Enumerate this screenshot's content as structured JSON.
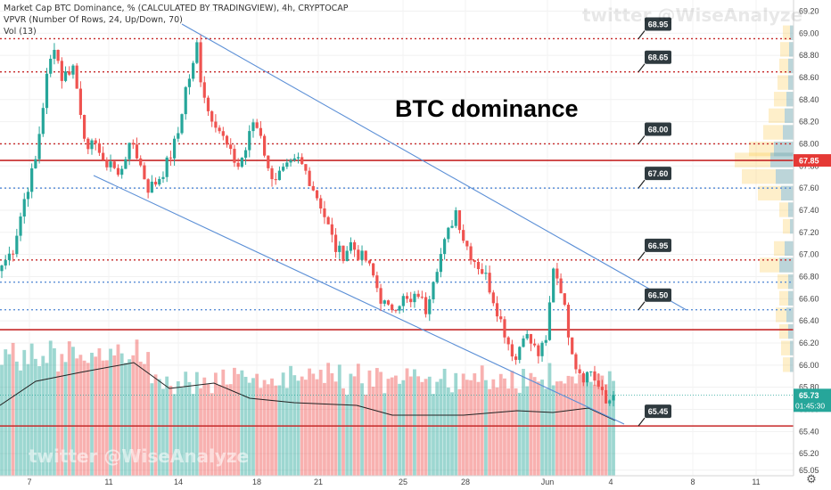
{
  "header": {
    "title": "Market Cap BTC Dominance, % (CALCULATED BY TRADINGVIEW), 4h, CRYPTOCAP",
    "vpvr": "VPVR (Number Of Rows, 24, Up/Down, 70)",
    "vol": "Vol (13)"
  },
  "watermark": "twitter @WiseAnalyze",
  "annotation": "BTC dominance",
  "gear_icon": "gear-icon",
  "colors": {
    "up": "#26a69a",
    "down": "#ef5350",
    "level": "#c62828",
    "trend": "#5b8fd6",
    "price_tag": "#e53935",
    "time_tag": "#26a69a",
    "label_bg": "#2f3a3f"
  },
  "chart_data": {
    "type": "candlestick",
    "y_axis": {
      "min": 65.0,
      "max": 69.3,
      "ticks": [
        "65.05",
        "65.20",
        "65.40",
        "65.60",
        "65.80",
        "66.00",
        "66.20",
        "66.40",
        "66.60",
        "66.80",
        "67.00",
        "67.20",
        "67.40",
        "67.60",
        "67.80",
        "68.00",
        "68.20",
        "68.40",
        "68.60",
        "68.80",
        "69.00",
        "69.20"
      ]
    },
    "x_axis": {
      "ticks": [
        "7",
        "11",
        "14",
        "18",
        "21",
        "25",
        "28",
        "Jun",
        "4",
        "8",
        "11"
      ]
    },
    "price_labels": [
      "68.95",
      "68.65",
      "68.00",
      "67.60",
      "66.95",
      "66.50",
      "65.45"
    ],
    "current_price": "67.85",
    "last_price": "65.73",
    "countdown": "01:45:30",
    "close_path": [
      [
        0,
        66.9
      ],
      [
        3,
        67.05
      ],
      [
        6,
        67.5
      ],
      [
        9,
        67.85
      ],
      [
        12,
        68.6
      ],
      [
        14,
        68.9
      ],
      [
        16,
        68.6
      ],
      [
        19,
        68.7
      ],
      [
        21,
        68.3
      ],
      [
        23,
        67.9
      ],
      [
        25,
        68.05
      ],
      [
        27,
        67.8
      ],
      [
        29,
        67.85
      ],
      [
        31,
        67.7
      ],
      [
        33,
        67.9
      ],
      [
        35,
        68.0
      ],
      [
        37,
        67.8
      ],
      [
        39,
        67.6
      ],
      [
        41,
        67.65
      ],
      [
        43,
        67.75
      ],
      [
        45,
        67.9
      ],
      [
        47,
        68.1
      ],
      [
        49,
        68.5
      ],
      [
        51,
        68.7
      ],
      [
        52,
        68.9
      ],
      [
        53,
        68.6
      ],
      [
        55,
        68.3
      ],
      [
        57,
        68.2
      ],
      [
        59,
        68.05
      ],
      [
        61,
        67.9
      ],
      [
        63,
        67.8
      ],
      [
        65,
        67.95
      ],
      [
        67,
        68.2
      ],
      [
        69,
        68.1
      ],
      [
        71,
        67.75
      ],
      [
        73,
        67.7
      ],
      [
        75,
        67.75
      ],
      [
        77,
        67.8
      ],
      [
        79,
        67.85
      ],
      [
        81,
        67.75
      ],
      [
        83,
        67.6
      ],
      [
        85,
        67.45
      ],
      [
        87,
        67.25
      ],
      [
        89,
        67.05
      ],
      [
        91,
        67.0
      ],
      [
        93,
        67.1
      ],
      [
        95,
        67.0
      ],
      [
        97,
        66.95
      ],
      [
        99,
        66.8
      ],
      [
        101,
        66.6
      ],
      [
        103,
        66.5
      ],
      [
        105,
        66.55
      ],
      [
        107,
        66.6
      ],
      [
        109,
        66.55
      ],
      [
        111,
        66.65
      ],
      [
        113,
        66.5
      ],
      [
        115,
        66.8
      ],
      [
        117,
        67.0
      ],
      [
        119,
        67.2
      ],
      [
        121,
        67.4
      ],
      [
        123,
        67.15
      ],
      [
        125,
        67.0
      ],
      [
        127,
        66.9
      ],
      [
        129,
        66.8
      ],
      [
        131,
        66.6
      ],
      [
        133,
        66.4
      ],
      [
        135,
        66.2
      ],
      [
        137,
        66.05
      ],
      [
        139,
        66.3
      ],
      [
        141,
        66.2
      ],
      [
        143,
        66.1
      ],
      [
        145,
        66.2
      ],
      [
        147,
        66.9
      ],
      [
        149,
        66.7
      ],
      [
        151,
        66.3
      ],
      [
        153,
        66.0
      ],
      [
        155,
        65.9
      ],
      [
        157,
        65.95
      ],
      [
        159,
        65.8
      ],
      [
        161,
        65.65
      ],
      [
        163,
        65.73
      ]
    ],
    "levels": [
      {
        "value": 68.95,
        "style": "dotted",
        "color": "#c62828"
      },
      {
        "value": 68.65,
        "style": "dotted",
        "color": "#c62828"
      },
      {
        "value": 68.0,
        "style": "dotted",
        "color": "#c62828"
      },
      {
        "value": 67.85,
        "style": "solid",
        "color": "#c62828"
      },
      {
        "value": 67.6,
        "style": "dotted",
        "color": "#5b8fd6"
      },
      {
        "value": 66.95,
        "style": "dotted",
        "color": "#c62828"
      },
      {
        "value": 66.75,
        "style": "dotted",
        "color": "#5b8fd6"
      },
      {
        "value": 66.5,
        "style": "dotted",
        "color": "#5b8fd6"
      },
      {
        "value": 66.32,
        "style": "solid",
        "color": "#c62828"
      },
      {
        "value": 65.45,
        "style": "solid",
        "color": "#c62828"
      }
    ]
  }
}
